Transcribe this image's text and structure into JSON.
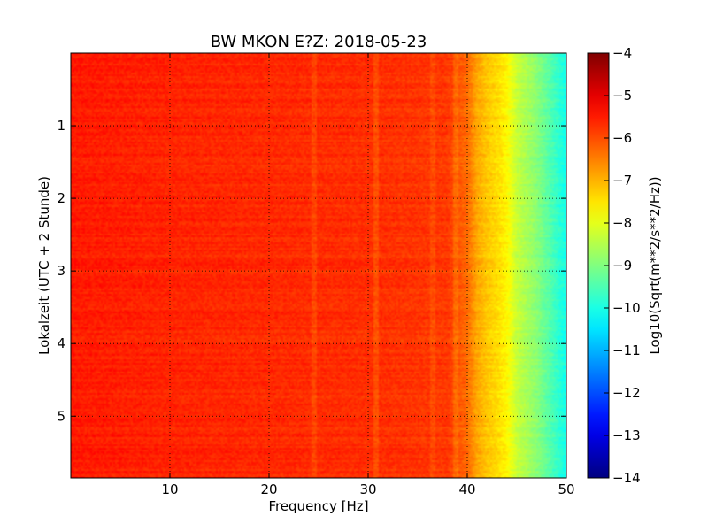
{
  "chart_data": {
    "type": "heatmap",
    "title": "BW MKON E?Z: 2018-05-23",
    "xlabel": "Frequency [Hz]",
    "ylabel": "Lokalzeit (UTC + 2 Stunde)",
    "xlim": [
      0,
      50
    ],
    "ylim": [
      5.85,
      0
    ],
    "xticks": [
      10,
      20,
      30,
      40,
      50
    ],
    "yticks": [
      1,
      2,
      3,
      4,
      5
    ],
    "grid": true,
    "grid_style": "dotted",
    "colorbar": {
      "label": "Log10(Sqrt(m**2/s**2/Hz))",
      "min": -14,
      "max": -4,
      "ticks": [
        -4,
        -5,
        -6,
        -7,
        -8,
        -9,
        -10,
        -11,
        -12,
        -13,
        -14
      ],
      "colormap": "jet"
    },
    "background_level": -5.6,
    "frequency_profile": [
      {
        "f": 0,
        "v": -5.5
      },
      {
        "f": 10,
        "v": -5.6
      },
      {
        "f": 20,
        "v": -5.65
      },
      {
        "f": 30,
        "v": -5.7
      },
      {
        "f": 38,
        "v": -5.8
      },
      {
        "f": 40,
        "v": -6.3
      },
      {
        "f": 41,
        "v": -6.9
      },
      {
        "f": 42,
        "v": -7.2
      },
      {
        "f": 43,
        "v": -7.4
      },
      {
        "f": 44,
        "v": -7.7
      },
      {
        "f": 45,
        "v": -8.3
      },
      {
        "f": 46,
        "v": -8.6
      },
      {
        "f": 47,
        "v": -8.9
      },
      {
        "f": 48,
        "v": -9.3
      },
      {
        "f": 49,
        "v": -9.7
      },
      {
        "f": 50,
        "v": -10.1
      }
    ],
    "horizontal_bands": [
      {
        "t": 0.18,
        "v": -5.1
      },
      {
        "t": 0.33,
        "v": -5.0
      },
      {
        "t": 0.75,
        "v": -5.2
      },
      {
        "t": 1.05,
        "v": -5.2
      },
      {
        "t": 1.55,
        "v": -5.0
      },
      {
        "t": 1.82,
        "v": -4.7
      },
      {
        "t": 2.15,
        "v": -4.7
      },
      {
        "t": 2.25,
        "v": -4.9
      },
      {
        "t": 2.65,
        "v": -5.1
      },
      {
        "t": 2.85,
        "v": -5.0
      },
      {
        "t": 3.05,
        "v": -4.9
      },
      {
        "t": 3.98,
        "v": -4.8
      },
      {
        "t": 4.15,
        "v": -4.9
      },
      {
        "t": 4.38,
        "v": -4.5
      },
      {
        "t": 5.65,
        "v": -4.8
      }
    ],
    "vertical_streaks": [
      {
        "f": 24.5,
        "v": -5.1
      },
      {
        "f": 30.8,
        "v": -5.0
      },
      {
        "f": 36.5,
        "v": -5.2
      },
      {
        "f": 38.8,
        "v": -5.1
      }
    ]
  }
}
